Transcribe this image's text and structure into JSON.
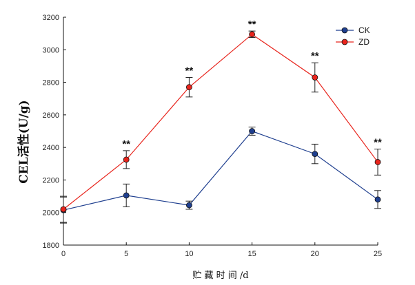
{
  "chart_data": {
    "type": "line",
    "title": "",
    "xlabel": "贮 藏 时 间 /d",
    "ylabel": "CEL活性(U/g)",
    "x": [
      0,
      5,
      10,
      15,
      20,
      25
    ],
    "xlim": [
      0,
      25
    ],
    "ylim": [
      1800,
      3200
    ],
    "x_ticks": [
      0,
      5,
      10,
      15,
      20,
      25
    ],
    "y_ticks": [
      1800,
      2000,
      2200,
      2400,
      2600,
      2800,
      3000,
      3200
    ],
    "grid": false,
    "legend_position": "top-right",
    "series": [
      {
        "name": "CK",
        "color": "#1f3f8f",
        "values": [
          2015,
          2105,
          2045,
          2500,
          2360,
          2080
        ],
        "errors": [
          80,
          70,
          25,
          25,
          60,
          55
        ]
      },
      {
        "name": "ZD",
        "color": "#e8241c",
        "values": [
          2020,
          2325,
          2770,
          3095,
          2830,
          2310
        ],
        "errors": [
          80,
          55,
          60,
          20,
          90,
          80
        ]
      }
    ],
    "annotations": [
      {
        "x": 5,
        "text": "**"
      },
      {
        "x": 10,
        "text": "**"
      },
      {
        "x": 15,
        "text": "**"
      },
      {
        "x": 20,
        "text": "**"
      },
      {
        "x": 25,
        "text": "**"
      }
    ]
  }
}
